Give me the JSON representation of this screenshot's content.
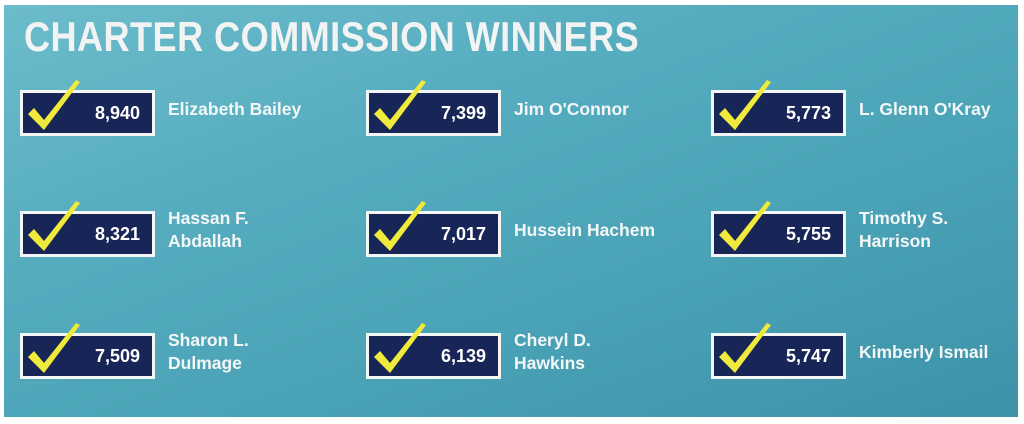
{
  "title": "CHARTER COMMISSION WINNERS",
  "colors": {
    "background": "#55acbf",
    "box": "#182557",
    "check": "#f0ea3c",
    "text": "#ffffff"
  },
  "winners": [
    {
      "votes": "8,940",
      "name": [
        "Elizabeth Bailey"
      ],
      "icon": "check-icon"
    },
    {
      "votes": "7,399",
      "name": [
        "Jim O'Connor"
      ],
      "icon": "check-icon"
    },
    {
      "votes": "5,773",
      "name": [
        "L. Glenn O'Kray"
      ],
      "icon": "check-icon"
    },
    {
      "votes": "8,321",
      "name": [
        "Hassan F.",
        "Abdallah"
      ],
      "icon": "check-icon"
    },
    {
      "votes": "7,017",
      "name": [
        "Hussein Hachem"
      ],
      "icon": "check-icon"
    },
    {
      "votes": "5,755",
      "name": [
        "Timothy S.",
        "Harrison"
      ],
      "icon": "check-icon"
    },
    {
      "votes": "7,509",
      "name": [
        "Sharon L.",
        "Dulmage"
      ],
      "icon": "check-icon"
    },
    {
      "votes": "6,139",
      "name": [
        "Cheryl D.",
        "Hawkins"
      ],
      "icon": "check-icon"
    },
    {
      "votes": "5,747",
      "name": [
        "Kimberly Ismail"
      ],
      "icon": "check-icon"
    }
  ]
}
